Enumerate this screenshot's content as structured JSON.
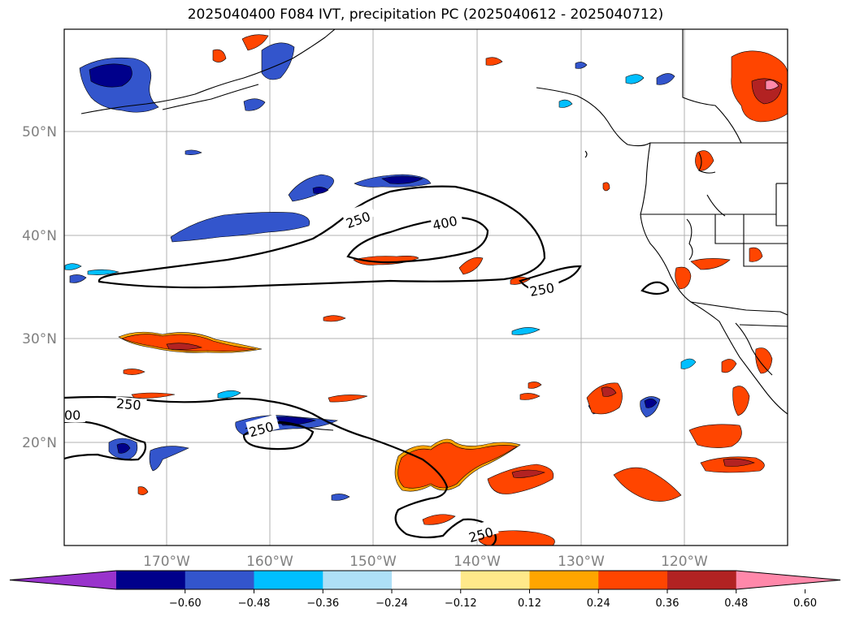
{
  "title": "2025040400 F084 IVT, precipitation PC (2025040612 - 2025040712)",
  "longitude_labels": [
    "170°W",
    "160°W",
    "150°W",
    "140°W",
    "130°W",
    "120°W"
  ],
  "latitude_labels": [
    "50°N",
    "40°N",
    "30°N",
    "20°N"
  ],
  "contour_labels": [
    "250",
    "400",
    "250",
    "250",
    "250",
    "00",
    "250"
  ],
  "colorbar": {
    "tick_labels": [
      "−0.60",
      "−0.48",
      "−0.36",
      "−0.24",
      "−0.12",
      "0.12",
      "0.24",
      "0.36",
      "0.48",
      "0.60"
    ],
    "colors": [
      "#9933cc",
      "#00008b",
      "#3355cc",
      "#00bfff",
      "#aee0f7",
      "#ffffff",
      "#ffe98a",
      "#ffa500",
      "#ff4500",
      "#b22222",
      "#ff88aa"
    ]
  }
}
